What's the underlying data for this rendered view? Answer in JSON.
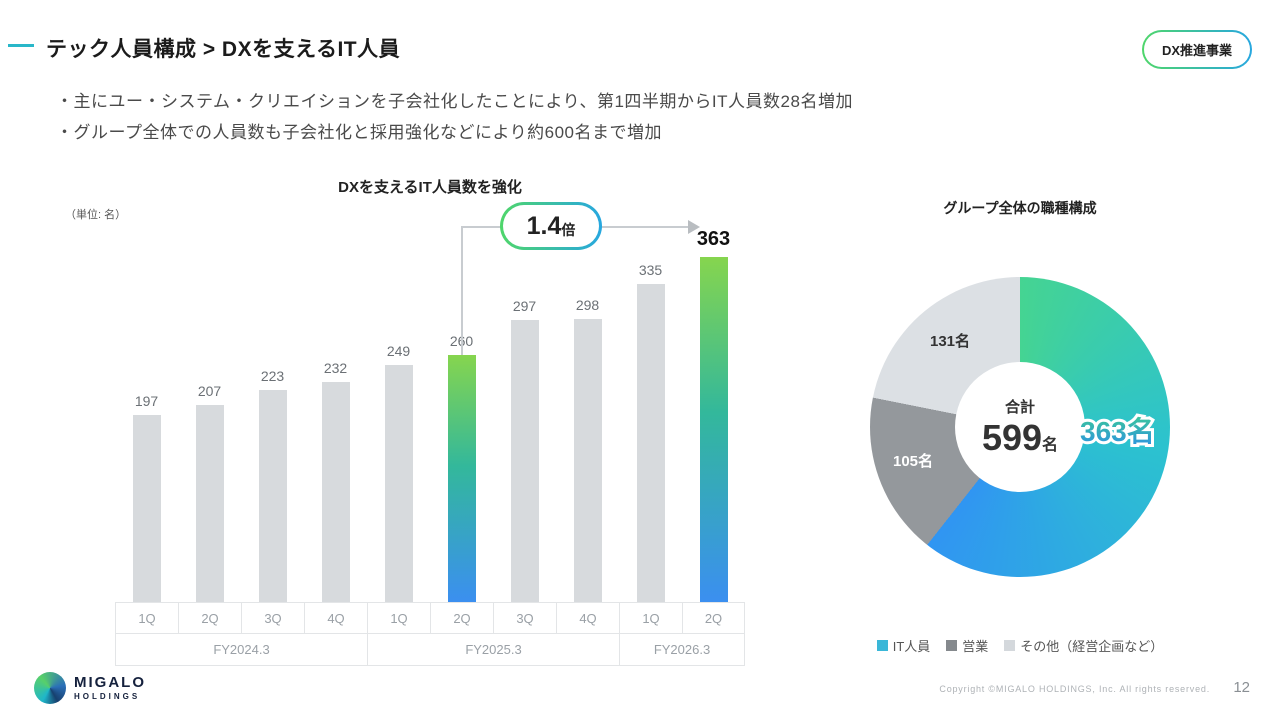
{
  "header": {
    "title": "テック人員構成 > DXを支えるIT人員",
    "badge": "DX推進事業"
  },
  "bullets": [
    "・主にユー・システム・クリエイションを子会社化したことにより、第1四半期からIT人員数28名増加",
    "・グループ全体での人員数も子会社化と採用強化などにより約600名まで増加"
  ],
  "colors": {
    "accent_teal": "#29b7c9",
    "bar_gray": "#d7dadd",
    "bar_gradient_top": "#86d54e",
    "bar_gradient_bottom": "#3b8ff0",
    "donut_it_start": "#45d492",
    "donut_it_end": "#3095f2",
    "donut_sales": "#94989c",
    "donut_other": "#dce0e4",
    "legend_colors": [
      "#3ab7d8",
      "#85898d",
      "#d4d8dc"
    ]
  },
  "chart_data": [
    {
      "type": "bar",
      "title": "DXを支えるIT人員数を強化",
      "unit_label": "（単位: 名）",
      "categories": [
        "1Q",
        "2Q",
        "3Q",
        "4Q",
        "1Q",
        "2Q",
        "3Q",
        "4Q",
        "1Q",
        "2Q"
      ],
      "values": [
        197,
        207,
        223,
        232,
        249,
        260,
        297,
        298,
        335,
        363
      ],
      "highlight_indices": [
        5,
        9
      ],
      "groups": [
        {
          "label": "FY2024.3",
          "span": 4
        },
        {
          "label": "FY2025.3",
          "span": 4
        },
        {
          "label": "FY2026.3",
          "span": 2
        }
      ],
      "annotation": {
        "text_big": "1.4",
        "text_small": "倍"
      },
      "ylabel": "名",
      "ylim": [
        0,
        400
      ],
      "grid": false
    },
    {
      "type": "pie",
      "title": "グループ全体の職種構成",
      "center_label": "合計",
      "center_value": "599",
      "center_unit": "名",
      "total": 599,
      "slices": [
        {
          "label": "IT人員",
          "value": 363,
          "display": "363名"
        },
        {
          "label": "営業",
          "value": 105,
          "display": "105名"
        },
        {
          "label": "その他（経営企画など）",
          "value": 131,
          "display": "131名"
        }
      ],
      "legend": [
        "IT人員",
        "営業",
        "その他（経営企画など）"
      ],
      "legend_position": "bottom"
    }
  ],
  "footer": {
    "logo_line1": "MIGALO",
    "logo_line2": "HOLDINGS",
    "copyright": "Copyright ©MIGALO HOLDINGS, Inc. All rights reserved.",
    "page_number": "12"
  }
}
